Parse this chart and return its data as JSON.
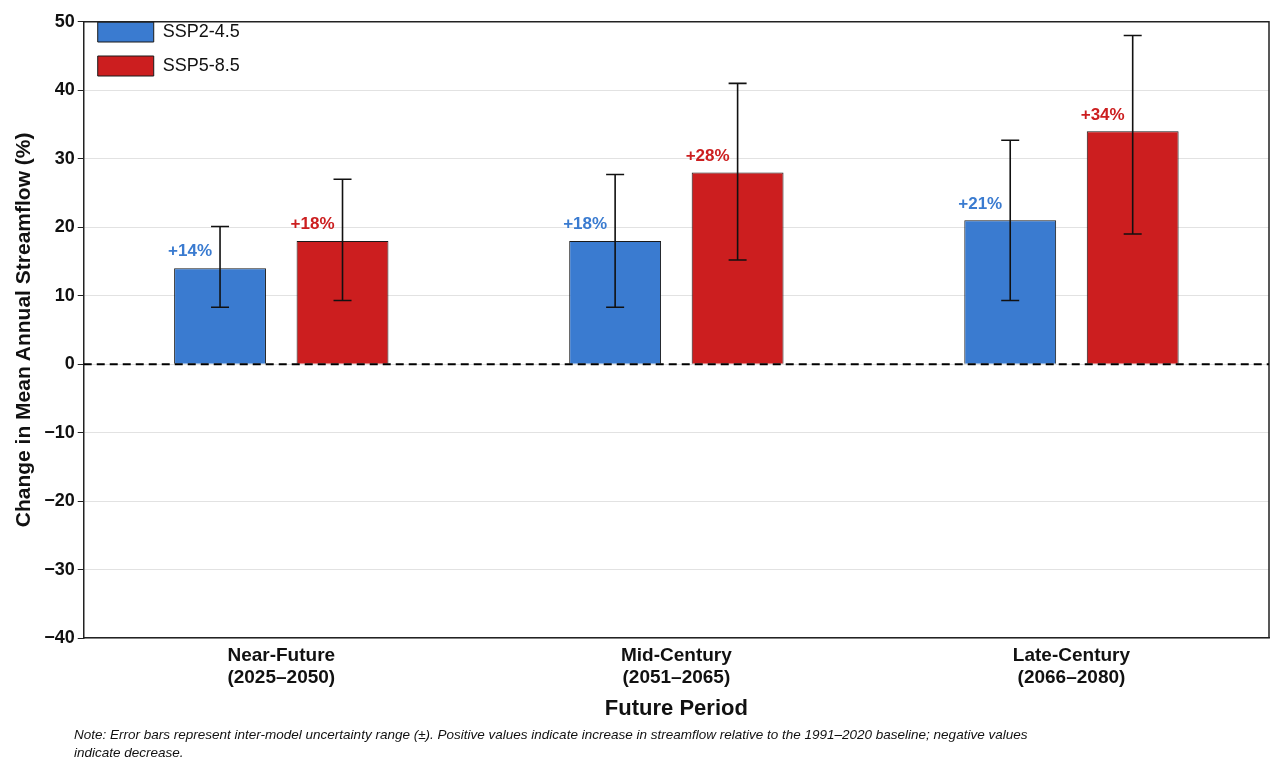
{
  "chart_data": {
    "type": "bar",
    "xlabel": "Future Period",
    "ylabel": "Change in Mean Annual Streamflow (%)",
    "categories": [
      "Near-Future (2025–2050)",
      "Mid-Century (2051–2065)",
      "Late-Century (2066–2080)"
    ],
    "series": [
      {
        "name": "SSP2-4.5",
        "color": "#3a7bd0",
        "values": [
          14,
          18,
          21
        ],
        "value_labels": [
          "+14%",
          "+18%",
          "+21%"
        ],
        "errors": [
          [
            8.3,
            20.1
          ],
          [
            8.3,
            27.7
          ],
          [
            9.3,
            32.7
          ]
        ]
      },
      {
        "name": "SSP5-8.5",
        "color": "#cc1e1f",
        "values": [
          18,
          28,
          34
        ],
        "value_labels": [
          "+18%",
          "+28%",
          "+34%"
        ],
        "errors": [
          [
            9.3,
            27
          ],
          [
            15.2,
            41
          ],
          [
            19,
            48
          ]
        ]
      }
    ],
    "ylim": [
      -40,
      50
    ],
    "yticks": [
      -40,
      -30,
      -20,
      -10,
      0,
      10,
      20,
      30,
      40,
      50
    ],
    "grid": "y",
    "legend": "top left",
    "ref_lines": [
      {
        "axis": "y",
        "value": 0,
        "line_style": "dashed",
        "color": "#000000"
      }
    ],
    "annotations": [
      "Note: Error bars represent inter-model uncertainty range (±). Positive values indicate increase in streamflow relative to the 1991–2020 baseline; negative values indicate decrease."
    ]
  }
}
